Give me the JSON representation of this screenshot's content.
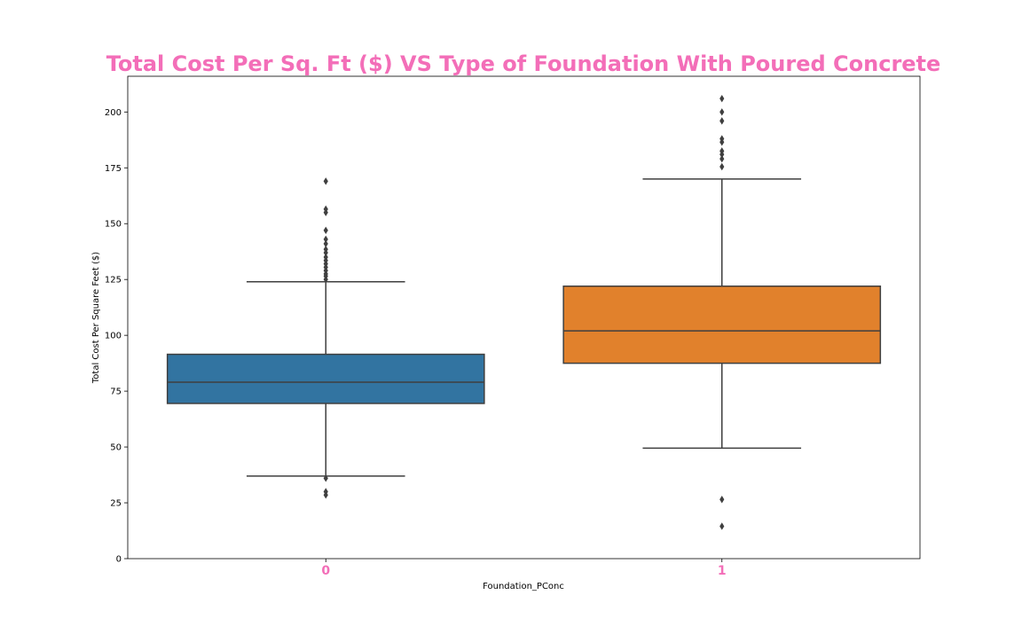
{
  "chart_data": {
    "type": "box",
    "title": "Total Cost Per Sq. Ft ($) VS Type of Foundation With Poured Concrete",
    "xlabel": "Foundation_PConc",
    "ylabel": "Total Cost Per Square Feet ($)",
    "ylim": [
      0,
      216
    ],
    "yticks": [
      "0",
      "25",
      "50",
      "75",
      "100",
      "125",
      "150",
      "175",
      "200"
    ],
    "categories": [
      "0",
      "1"
    ],
    "grid": false,
    "legend": false,
    "colors": {
      "title": "#f36eb8",
      "xtick": "#f36eb8",
      "box_0": "#3274a1",
      "box_1": "#e1812c",
      "line": "#3f3f3f"
    },
    "boxes": [
      {
        "category": "0",
        "q1": 69.5,
        "median": 79,
        "q3": 91.5,
        "whisker_low": 37,
        "whisker_high": 124,
        "outliers": [
          28.5,
          30,
          36,
          125,
          126.5,
          127.5,
          129,
          130.5,
          132,
          133.5,
          135,
          137,
          138.5,
          141,
          143,
          147,
          155,
          156.5,
          169
        ]
      },
      {
        "category": "1",
        "q1": 87.5,
        "median": 102,
        "q3": 122,
        "whisker_low": 49.5,
        "whisker_high": 170,
        "outliers": [
          14.5,
          26.5,
          175.5,
          179,
          181,
          182.5,
          186.5,
          188,
          196,
          200,
          206
        ]
      }
    ]
  }
}
